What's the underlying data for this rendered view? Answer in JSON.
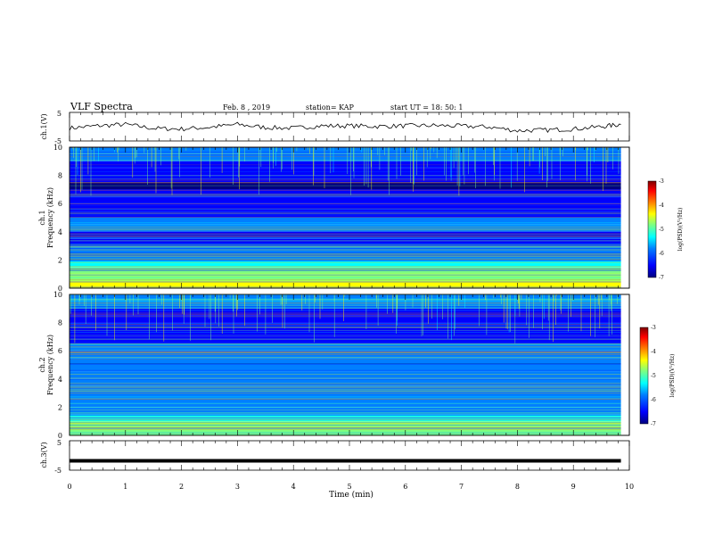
{
  "header": {
    "title": "VLF Spectra",
    "date": "Feb. 8 , 2019",
    "station": "station= KAP",
    "start": "start UT = 18: 50: 1"
  },
  "colors": {
    "trace": "#000000",
    "colormap": [
      "#00007f",
      "#0000ff",
      "#007fff",
      "#00ffff",
      "#7fff7f",
      "#ffff00",
      "#ff7f00",
      "#ff0000",
      "#7f0000"
    ]
  },
  "chart_data": [
    {
      "type": "line",
      "ylabel": "ch.1(V)",
      "ylim": [
        -5,
        5
      ],
      "ytick_labels": [
        "5",
        "-5"
      ],
      "x_range_min": [
        0,
        9.85
      ],
      "description_values": {
        "x": [
          0,
          0.5,
          1,
          1.5,
          2,
          2.5,
          3,
          3.5,
          4,
          4.5,
          5,
          5.5,
          6,
          6.5,
          7,
          7.5,
          8,
          8.5,
          9,
          9.5,
          9.85
        ],
        "y": [
          -0.5,
          0.3,
          0.8,
          -0.6,
          -0.8,
          -0.2,
          0.8,
          -0.3,
          -0.5,
          0.3,
          0.3,
          0.1,
          0.3,
          0.4,
          0.2,
          -0.1,
          -1.4,
          -1.2,
          -0.8,
          0.0,
          0.8
        ]
      }
    },
    {
      "type": "heatmap",
      "ylabel_line1": "ch.1",
      "ylabel_line2": "Frequency (kHz)",
      "ylim": [
        0,
        10
      ],
      "ytick_labels": [
        "0",
        "2",
        "4",
        "6",
        "8",
        "10"
      ],
      "colorbar": {
        "label": "log(PSD)(V²/Hz)",
        "ticks": [
          "-3",
          "-4",
          "-5",
          "-6",
          "-7"
        ],
        "range": [
          -7,
          -3
        ]
      },
      "frequency_kHz": [
        0.25,
        0.75,
        1.25,
        1.75,
        2.25,
        2.75,
        3.25,
        3.75,
        4.25,
        4.75,
        5.25,
        5.75,
        6.25,
        6.75,
        7.25,
        7.75,
        8.25,
        8.75,
        9.25,
        9.75
      ],
      "log_psd": [
        -4.6,
        -4.9,
        -5.2,
        -5.6,
        -5.9,
        -6.2,
        -6.3,
        -6.4,
        -6.2,
        -6.1,
        -6.3,
        -6.5,
        -6.4,
        -6.7,
        -6.8,
        -6.7,
        -6.6,
        -6.4,
        -6.2,
        -6.0
      ]
    },
    {
      "type": "heatmap",
      "ylabel_line1": "ch.2",
      "ylabel_line2": "Frequency (kHz)",
      "ylim": [
        0,
        10
      ],
      "ytick_labels": [
        "0",
        "2",
        "4",
        "6",
        "8",
        "10"
      ],
      "colorbar": {
        "label": "log(PSD)(V²/Hz)",
        "ticks": [
          "-3",
          "-4",
          "-5",
          "-6",
          "-7"
        ],
        "range": [
          -7,
          -3
        ]
      },
      "frequency_kHz": [
        0.25,
        0.75,
        1.25,
        1.75,
        2.25,
        2.75,
        3.25,
        3.75,
        4.25,
        4.75,
        5.25,
        5.75,
        6.25,
        6.75,
        7.25,
        7.75,
        8.25,
        8.75,
        9.25,
        9.75
      ],
      "log_psd": [
        -4.9,
        -5.1,
        -5.6,
        -5.9,
        -6.0,
        -6.0,
        -6.1,
        -6.0,
        -6.0,
        -5.9,
        -5.9,
        -5.8,
        -6.0,
        -6.3,
        -6.5,
        -6.5,
        -6.4,
        -6.3,
        -6.2,
        -6.1
      ]
    },
    {
      "type": "line",
      "ylabel": "ch.3(V)",
      "ylim": [
        -5,
        5
      ],
      "ytick_labels": [
        "5",
        "-5"
      ],
      "x": [
        0,
        9.85
      ],
      "y": [
        -1.8,
        -1.8
      ]
    }
  ],
  "xaxis": {
    "label": "Time (min)",
    "xlim": [
      0,
      10
    ],
    "tick_labels": [
      "0",
      "1",
      "2",
      "3",
      "4",
      "5",
      "6",
      "7",
      "8",
      "9",
      "10"
    ]
  }
}
